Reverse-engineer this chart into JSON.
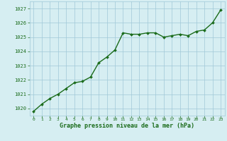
{
  "x": [
    0,
    1,
    2,
    3,
    4,
    5,
    6,
    7,
    8,
    9,
    10,
    11,
    12,
    13,
    14,
    15,
    16,
    17,
    18,
    19,
    20,
    21,
    22,
    23
  ],
  "y": [
    1019.8,
    1020.3,
    1020.7,
    1021.0,
    1021.4,
    1021.8,
    1021.9,
    1022.2,
    1023.2,
    1023.6,
    1024.1,
    1025.3,
    1025.2,
    1025.2,
    1025.3,
    1025.3,
    1025.0,
    1025.1,
    1025.2,
    1025.1,
    1025.4,
    1025.5,
    1026.0,
    1026.9
  ],
  "ylim": [
    1019.5,
    1027.5
  ],
  "yticks": [
    1020,
    1021,
    1022,
    1023,
    1024,
    1025,
    1026,
    1027
  ],
  "xlim": [
    -0.5,
    23.5
  ],
  "xticks": [
    0,
    1,
    2,
    3,
    4,
    5,
    6,
    7,
    8,
    9,
    10,
    11,
    12,
    13,
    14,
    15,
    16,
    17,
    18,
    19,
    20,
    21,
    22,
    23
  ],
  "xlabel": "Graphe pression niveau de la mer (hPa)",
  "line_color": "#1a6b1a",
  "marker_color": "#1a6b1a",
  "bg_color": "#d6eef2",
  "grid_color": "#a0c8d8",
  "xlabel_color": "#1a6b1a",
  "tick_color": "#1a6b1a",
  "marker": "D",
  "marker_size": 2,
  "line_width": 1.0
}
